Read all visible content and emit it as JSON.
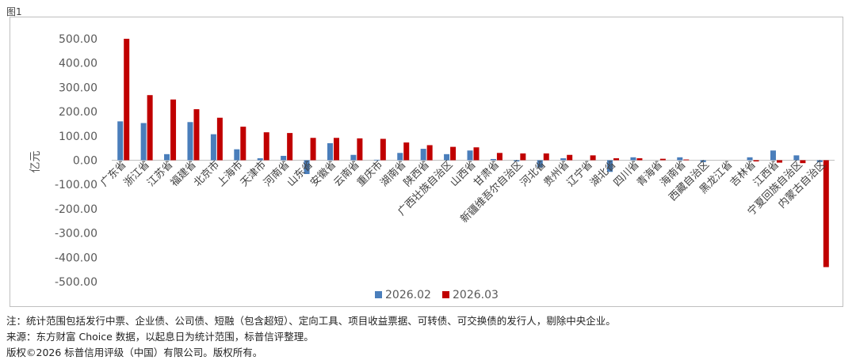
{
  "figure_label": "图1",
  "notes": {
    "note1": "注：统计范围包括发行中票、企业债、公司债、短融（包含超短）、定向工具、项目收益票据、可转债、可交换债的发行人，剔除中央企业。",
    "note2": "来源：东方财富 Choice 数据，以起息日为统计范围，标普信评整理。",
    "copyright": "版权©2026 标普信用评级（中国）有限公司。版权所有。"
  },
  "chart_data": {
    "type": "bar",
    "ylabel": "亿元",
    "ylim": [
      -500,
      500
    ],
    "yticks": [
      500,
      400,
      300,
      200,
      100,
      0,
      -100,
      -200,
      -300,
      -400,
      -500
    ],
    "ytick_labels": [
      "500.00",
      "400.00",
      "300.00",
      "200.00",
      "100.00",
      "0.00",
      "-100.00",
      "-200.00",
      "-300.00",
      "-400.00",
      "-500.00"
    ],
    "legend_position": "bottom",
    "categories": [
      "广东省",
      "浙江省",
      "江苏省",
      "福建省",
      "北京市",
      "上海市",
      "天津市",
      "河南省",
      "山东省",
      "安徽省",
      "云南省",
      "重庆市",
      "湖南省",
      "陕西省",
      "广西壮族自治区",
      "山西省",
      "甘肃省",
      "新疆维吾尔自治区",
      "河北省",
      "贵州省",
      "辽宁省",
      "湖北省",
      "四川省",
      "青海省",
      "海南省",
      "西藏自治区",
      "黑龙江省",
      "吉林省",
      "江西省",
      "宁夏回族自治区",
      "内蒙古自治区"
    ],
    "series": [
      {
        "name": "2026.02",
        "color": "#4a7ebb",
        "values": [
          160,
          153,
          25,
          157,
          107,
          45,
          8,
          18,
          -57,
          70,
          22,
          2,
          30,
          47,
          25,
          40,
          5,
          -5,
          -30,
          8,
          0,
          -48,
          12,
          0,
          12,
          -8,
          0,
          12,
          40,
          20,
          -8
        ]
      },
      {
        "name": "2026.03",
        "color": "#c00000",
        "values": [
          500,
          268,
          250,
          210,
          175,
          138,
          115,
          112,
          92,
          92,
          90,
          88,
          73,
          62,
          55,
          53,
          30,
          28,
          28,
          22,
          20,
          8,
          8,
          6,
          3,
          0,
          0,
          -5,
          -10,
          -12,
          -440
        ]
      }
    ]
  }
}
